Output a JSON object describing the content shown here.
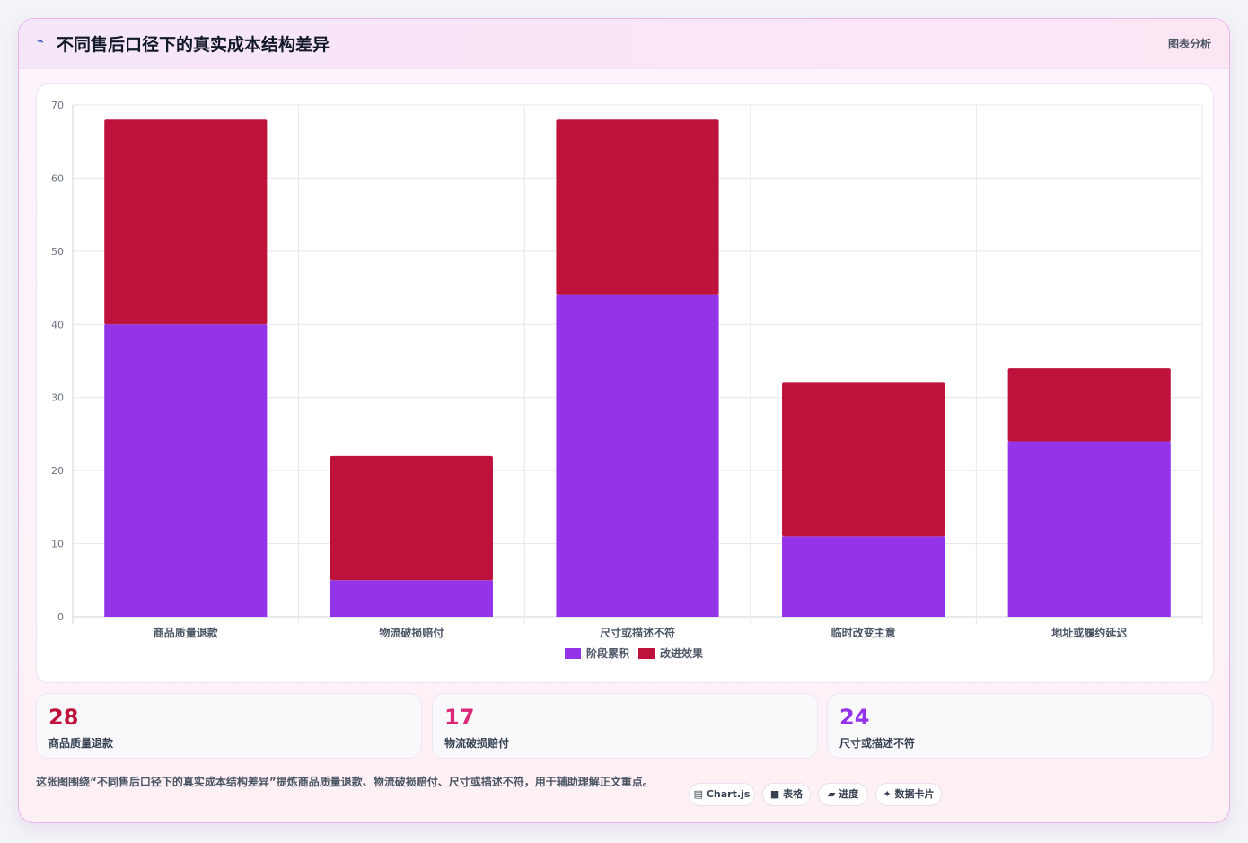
{
  "header": {
    "icon": "trend-line-icon",
    "title": "不同售后口径下的真实成本结构差异",
    "action": "图表分析"
  },
  "chart_data": {
    "type": "bar",
    "stacked": true,
    "categories": [
      "商品质量退款",
      "物流破损赔付",
      "尺寸或描述不符",
      "临时改变主意",
      "地址或履约延迟"
    ],
    "series": [
      {
        "name": "阶段累积",
        "color": "#9333ea",
        "values": [
          40,
          5,
          44,
          11,
          24
        ]
      },
      {
        "name": "改进效果",
        "color": "#be123c",
        "values": [
          28,
          17,
          24,
          21,
          10
        ]
      }
    ],
    "ylim": [
      0,
      70
    ],
    "yticks": [
      0,
      10,
      20,
      30,
      40,
      50,
      60,
      70
    ],
    "grid": true,
    "legend": "bottom"
  },
  "stats": [
    {
      "value": "28",
      "label": "商品质量退款",
      "color": "#be123c"
    },
    {
      "value": "17",
      "label": "物流破损赔付",
      "color": "#db2777"
    },
    {
      "value": "24",
      "label": "尺寸或描述不符",
      "color": "#9333ea"
    }
  ],
  "caption": "这张图围绕“不同售后口径下的真实成本结构差异”提炼商品质量退款、物流破损赔付、尺寸或描述不符，用于辅助理解正文重点。",
  "tags": [
    {
      "icon": "▤",
      "label": "Chart.js"
    },
    {
      "icon": "■",
      "label": "表格"
    },
    {
      "icon": "▰",
      "label": "进度"
    },
    {
      "icon": "✦",
      "label": "数据卡片"
    }
  ]
}
